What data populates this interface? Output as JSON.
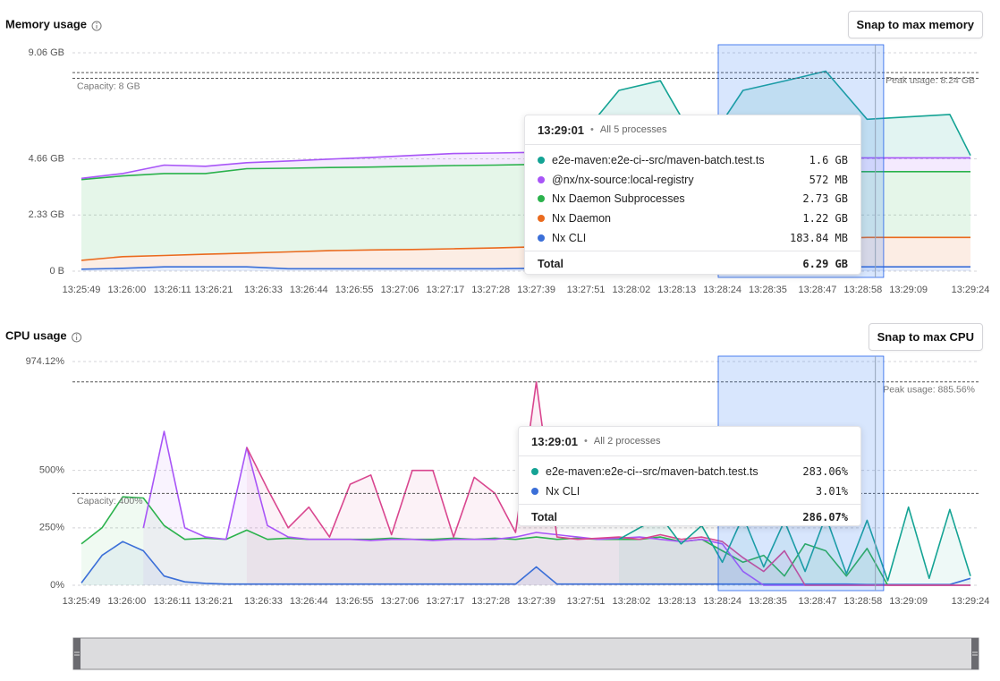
{
  "chart_data": [
    {
      "type": "area",
      "stacked": true,
      "title": "Memory usage",
      "button": "Snap to max memory",
      "xlim": [
        "13:25:49",
        "13:29:24"
      ],
      "xticks": [
        "13:25:49",
        "13:26:00",
        "13:26:11",
        "13:26:21",
        "13:26:33",
        "13:26:44",
        "13:26:55",
        "13:27:06",
        "13:27:17",
        "13:27:28",
        "13:27:39",
        "13:27:51",
        "13:28:02",
        "13:28:13",
        "13:28:24",
        "13:28:35",
        "13:28:47",
        "13:28:58",
        "13:29:09",
        "13:29:24"
      ],
      "ylim": [
        0,
        9.06
      ],
      "yticks": [
        {
          "value": 0,
          "label": "0 B"
        },
        {
          "value": 2.33,
          "label": "2.33 GB"
        },
        {
          "value": 4.66,
          "label": "4.66 GB"
        },
        {
          "value": 9.06,
          "label": "9.06 GB"
        }
      ],
      "grid": true,
      "reference_lines": [
        {
          "value": 8,
          "label": "Capacity: 8 GB"
        },
        {
          "value": 8.24,
          "label": "Peak usage: 8.24 GB"
        }
      ],
      "selection": [
        "13:28:23",
        "13:29:03"
      ],
      "x": [
        "13:25:49",
        "13:25:59",
        "13:26:09",
        "13:26:19",
        "13:26:29",
        "13:26:39",
        "13:26:49",
        "13:26:59",
        "13:27:09",
        "13:27:19",
        "13:27:29",
        "13:27:39",
        "13:27:49",
        "13:27:59",
        "13:28:09",
        "13:28:19",
        "13:28:29",
        "13:28:39",
        "13:28:49",
        "13:28:59",
        "13:29:09",
        "13:29:19",
        "13:29:24"
      ],
      "series": [
        {
          "color": "#3b6fd8",
          "values": [
            0.08,
            0.12,
            0.18,
            0.18,
            0.18,
            0.1,
            0.1,
            0.1,
            0.1,
            0.1,
            0.1,
            0.12,
            0.14,
            0.16,
            0.18,
            0.18,
            0.18,
            0.18,
            0.18,
            0.18,
            0.18,
            0.18,
            0.18
          ]
        },
        {
          "color": "#ea6a1e",
          "values": [
            0.37,
            0.48,
            0.47,
            0.52,
            0.57,
            0.7,
            0.75,
            0.78,
            0.8,
            0.83,
            0.86,
            0.89,
            0.91,
            0.94,
            0.97,
            1.02,
            1.07,
            1.12,
            1.17,
            1.22,
            1.22,
            1.22,
            1.22
          ]
        },
        {
          "color": "#2bb24c",
          "values": [
            3.35,
            3.35,
            3.4,
            3.35,
            3.5,
            3.47,
            3.45,
            3.44,
            3.45,
            3.45,
            3.44,
            3.42,
            3.37,
            3.3,
            3.15,
            3.0,
            2.9,
            2.83,
            2.78,
            2.73,
            2.73,
            2.73,
            2.73
          ]
        },
        {
          "color": "#a855f7",
          "values": [
            0.05,
            0.1,
            0.35,
            0.3,
            0.25,
            0.3,
            0.35,
            0.4,
            0.45,
            0.5,
            0.5,
            0.5,
            0.5,
            0.5,
            0.5,
            0.52,
            0.55,
            0.56,
            0.57,
            0.57,
            0.57,
            0.57,
            0.57
          ]
        },
        {
          "color": "#14a394",
          "values": [
            null,
            null,
            null,
            null,
            null,
            null,
            null,
            null,
            null,
            null,
            null,
            null,
            0.5,
            2.6,
            3.1,
            0.2,
            2.8,
            3.2,
            3.6,
            1.6,
            1.7,
            1.8,
            0.1
          ]
        }
      ],
      "tooltip": {
        "time": "13:29:01",
        "subtitle": "All 5 processes",
        "rows": [
          {
            "name": "e2e-maven:e2e-ci--src/maven-batch.test.ts",
            "color": "#14a394",
            "value": "1.6 GB"
          },
          {
            "name": "@nx/nx-source:local-registry",
            "color": "#a855f7",
            "value": "572 MB"
          },
          {
            "name": "Nx Daemon Subprocesses",
            "color": "#2bb24c",
            "value": "2.73 GB"
          },
          {
            "name": "Nx Daemon",
            "color": "#ea6a1e",
            "value": "1.22 GB"
          },
          {
            "name": "Nx CLI",
            "color": "#3b6fd8",
            "value": "183.84 MB"
          }
        ],
        "total_label": "Total",
        "total": "6.29 GB"
      }
    },
    {
      "type": "line",
      "title": "CPU usage",
      "button": "Snap to max CPU",
      "xlim": [
        "13:25:49",
        "13:29:24"
      ],
      "xticks": [
        "13:25:49",
        "13:26:00",
        "13:26:11",
        "13:26:21",
        "13:26:33",
        "13:26:44",
        "13:26:55",
        "13:27:06",
        "13:27:17",
        "13:27:28",
        "13:27:39",
        "13:27:51",
        "13:28:02",
        "13:28:13",
        "13:28:24",
        "13:28:35",
        "13:28:47",
        "13:28:58",
        "13:29:09",
        "13:29:24"
      ],
      "ylim": [
        0,
        974.12
      ],
      "yticks": [
        {
          "value": 0,
          "label": "0%"
        },
        {
          "value": 250,
          "label": "250%"
        },
        {
          "value": 500,
          "label": "500%"
        },
        {
          "value": 974.12,
          "label": "974.12%"
        }
      ],
      "grid": true,
      "reference_lines": [
        {
          "value": 400,
          "label": "Capacity: 400%"
        },
        {
          "value": 885.56,
          "label": "Peak usage: 885.56%"
        }
      ],
      "selection": [
        "13:28:23",
        "13:29:03"
      ],
      "x": [
        "13:25:49",
        "13:25:54",
        "13:25:59",
        "13:26:04",
        "13:26:09",
        "13:26:14",
        "13:26:19",
        "13:26:24",
        "13:26:29",
        "13:26:34",
        "13:26:39",
        "13:26:44",
        "13:26:49",
        "13:26:54",
        "13:26:59",
        "13:27:04",
        "13:27:09",
        "13:27:14",
        "13:27:19",
        "13:27:24",
        "13:27:29",
        "13:27:34",
        "13:27:39",
        "13:27:44",
        "13:27:49",
        "13:27:54",
        "13:27:59",
        "13:28:04",
        "13:28:09",
        "13:28:14",
        "13:28:19",
        "13:28:24",
        "13:28:29",
        "13:28:34",
        "13:28:39",
        "13:28:44",
        "13:28:49",
        "13:28:54",
        "13:28:59",
        "13:29:04",
        "13:29:09",
        "13:29:14",
        "13:29:19",
        "13:29:24"
      ],
      "series": [
        {
          "color": "#3b6fd8",
          "values": [
            10,
            130,
            190,
            150,
            40,
            15,
            8,
            5,
            5,
            5,
            5,
            5,
            5,
            5,
            5,
            5,
            5,
            5,
            5,
            5,
            5,
            5,
            80,
            5,
            5,
            5,
            5,
            5,
            5,
            5,
            5,
            5,
            5,
            5,
            5,
            5,
            5,
            5,
            3,
            3,
            3,
            3,
            3,
            30
          ]
        },
        {
          "color": "#2bb24c",
          "values": [
            180,
            250,
            385,
            380,
            260,
            200,
            205,
            200,
            240,
            200,
            205,
            200,
            200,
            200,
            200,
            205,
            200,
            200,
            205,
            200,
            205,
            200,
            210,
            200,
            205,
            200,
            200,
            200,
            210,
            190,
            200,
            150,
            100,
            130,
            40,
            180,
            150,
            40,
            160,
            0,
            0,
            0,
            0,
            0
          ]
        },
        {
          "color": "#a855f7",
          "values": [
            null,
            null,
            null,
            250,
            670,
            250,
            210,
            200,
            600,
            260,
            210,
            200,
            200,
            200,
            195,
            200,
            200,
            195,
            200,
            200,
            200,
            210,
            230,
            220,
            210,
            200,
            205,
            210,
            200,
            190,
            200,
            180,
            60,
            0,
            0,
            0,
            0,
            0,
            0,
            0,
            0,
            0,
            0,
            0
          ]
        },
        {
          "color": "#d9468f",
          "values": [
            null,
            null,
            null,
            null,
            null,
            null,
            null,
            null,
            600,
            420,
            250,
            340,
            210,
            440,
            480,
            220,
            500,
            500,
            210,
            470,
            400,
            230,
            885,
            210,
            200,
            205,
            210,
            200,
            220,
            200,
            210,
            190,
            120,
            60,
            150,
            0,
            0,
            0,
            0,
            0,
            0,
            0,
            0,
            0
          ]
        },
        {
          "color": "#14a394",
          "values": [
            null,
            null,
            null,
            null,
            null,
            null,
            null,
            null,
            null,
            null,
            null,
            null,
            null,
            null,
            null,
            null,
            null,
            null,
            null,
            null,
            null,
            null,
            null,
            null,
            null,
            null,
            200,
            250,
            300,
            180,
            260,
            100,
            300,
            80,
            280,
            60,
            300,
            50,
            283,
            20,
            340,
            30,
            330,
            40
          ]
        }
      ],
      "tooltip": {
        "time": "13:29:01",
        "subtitle": "All 2 processes",
        "rows": [
          {
            "name": "e2e-maven:e2e-ci--src/maven-batch.test.ts",
            "color": "#14a394",
            "value": "283.06%"
          },
          {
            "name": "Nx CLI",
            "color": "#3b6fd8",
            "value": "3.01%"
          }
        ],
        "total_label": "Total",
        "total": "286.07%"
      }
    }
  ]
}
